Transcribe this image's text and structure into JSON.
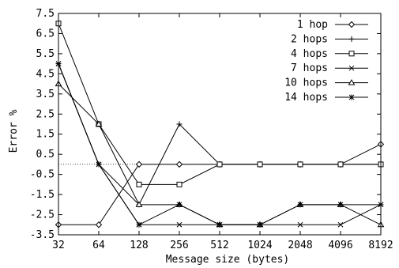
{
  "chart_data": {
    "type": "line",
    "title": "",
    "xlabel": "Message size (bytes)",
    "ylabel": "Error %",
    "categories": [
      "32",
      "64",
      "128",
      "256",
      "512",
      "1024",
      "2048",
      "4096",
      "8192"
    ],
    "ylim": [
      -3.5,
      7.5
    ],
    "yticks": [
      "7.5",
      "6.5",
      "5.5",
      "4.5",
      "3.5",
      "2.5",
      "1.5",
      "0.5",
      "-0.5",
      "-1.5",
      "-2.5",
      "-3.5"
    ],
    "reference_line_y": 0,
    "legend_position": "top-right",
    "grid": false,
    "series": [
      {
        "name": "1 hop",
        "marker": "diamond",
        "values": [
          -3,
          -3,
          0,
          0,
          0,
          0,
          0,
          0,
          1
        ]
      },
      {
        "name": "2 hops",
        "marker": "plus",
        "values": [
          5,
          0,
          -2,
          2,
          0,
          0,
          0,
          0,
          0
        ]
      },
      {
        "name": "4 hops",
        "marker": "square",
        "values": [
          7,
          2,
          -1,
          -1,
          0,
          0,
          0,
          0,
          0
        ]
      },
      {
        "name": "7 hops",
        "marker": "x",
        "values": [
          5,
          0,
          -3,
          -3,
          -3,
          -3,
          -3,
          -3,
          -2
        ]
      },
      {
        "name": "10 hops",
        "marker": "triangle",
        "values": [
          4,
          2,
          -2,
          -2,
          -3,
          -3,
          -2,
          -2,
          -3
        ]
      },
      {
        "name": "14 hops",
        "marker": "star",
        "values": [
          5,
          0,
          -3,
          -2,
          -3,
          -3,
          -2,
          -2,
          -2
        ]
      }
    ]
  }
}
